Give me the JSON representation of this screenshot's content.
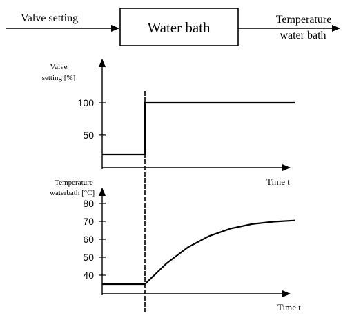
{
  "block_diagram": {
    "input_label": "Valve setting",
    "block_label": "Water bath",
    "output_label_line1": "Temperature",
    "output_label_line2": "water bath"
  },
  "chart_data": [
    {
      "type": "line",
      "ylabel_line1": "Valve",
      "ylabel_line2": "setting [%]",
      "xlabel": "Time t",
      "yticks": [
        50,
        100
      ],
      "series": [
        {
          "x": [
            0,
            1,
            1,
            4.5
          ],
          "y": [
            20,
            20,
            100,
            100
          ]
        }
      ],
      "grid": false
    },
    {
      "type": "line",
      "ylabel_line1": "Temperature",
      "ylabel_line2": "waterbath [°C]",
      "xlabel": "Time t",
      "yticks": [
        40,
        50,
        60,
        70,
        80
      ],
      "series": [
        {
          "x": [
            0,
            1,
            1.5,
            2,
            2.5,
            3,
            3.5,
            4,
            4.5
          ],
          "y": [
            35,
            35,
            46.5,
            55.5,
            61.8,
            66,
            68.5,
            69.8,
            70.5
          ]
        }
      ],
      "grid": false
    }
  ],
  "step_marker": {
    "style": "dashed-vertical"
  }
}
